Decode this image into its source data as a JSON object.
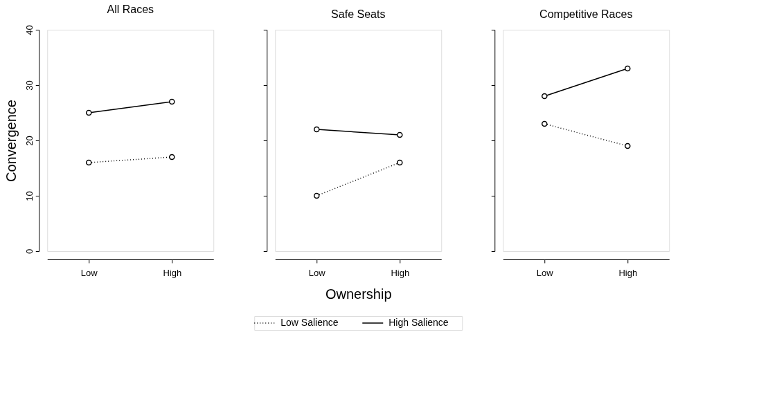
{
  "chart_data": [
    {
      "type": "line",
      "title": "All Races",
      "ylabel": "Convergence",
      "categories": [
        "Low",
        "High"
      ],
      "ylim": [
        0,
        40
      ],
      "yticks": [
        0,
        10,
        20,
        30,
        40
      ],
      "grid": false,
      "legend": "bottom",
      "marker": "circle",
      "series": [
        {
          "name": "Low Salience",
          "color": "#000000",
          "line_style": "dotted",
          "values": [
            16,
            17
          ]
        },
        {
          "name": "High Salience",
          "color": "#000000",
          "line_style": "solid",
          "values": [
            25,
            27
          ]
        }
      ]
    },
    {
      "type": "line",
      "title": "Safe Seats",
      "xlabel": "Ownership",
      "categories": [
        "Low",
        "High"
      ],
      "ylim": [
        0,
        40
      ],
      "yticks": [
        0,
        10,
        20,
        30,
        40
      ],
      "grid": false,
      "marker": "circle",
      "tick_labels": "x",
      "series": [
        {
          "color": "#000000",
          "line_style": "dotted",
          "values": [
            10,
            16
          ]
        },
        {
          "color": "#000000",
          "line_style": "solid",
          "values": [
            22,
            21
          ]
        }
      ]
    },
    {
      "type": "line",
      "title": "Competitive Races",
      "categories": [
        "Low",
        "High"
      ],
      "ylim": [
        0,
        40
      ],
      "yticks": [
        0,
        10,
        20,
        30,
        40
      ],
      "grid": false,
      "marker": "circle",
      "tick_labels": "x",
      "series": [
        {
          "color": "#000000",
          "line_style": "dotted",
          "values": [
            23,
            19
          ]
        },
        {
          "color": "#000000",
          "line_style": "solid",
          "values": [
            28,
            33
          ]
        }
      ]
    }
  ]
}
